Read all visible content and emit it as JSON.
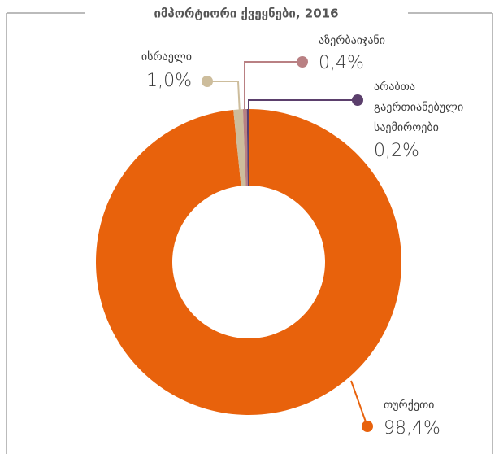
{
  "chart_data": {
    "type": "donut",
    "title": "იმპორტიორი ქვეყნები, 2016",
    "categories": [
      "თურქეთი",
      "ისრაელი",
      "აზერბაიჯანი",
      "არაბთა გაერთიანებული საემიროები"
    ],
    "values": [
      98.4,
      1.0,
      0.4,
      0.2
    ],
    "value_labels": [
      "98,4%",
      "1,0%",
      "0,4%",
      "0,2%"
    ],
    "colors": [
      "#e8620c",
      "#cdbd9c",
      "#b98083",
      "#5b3f6c"
    ]
  }
}
